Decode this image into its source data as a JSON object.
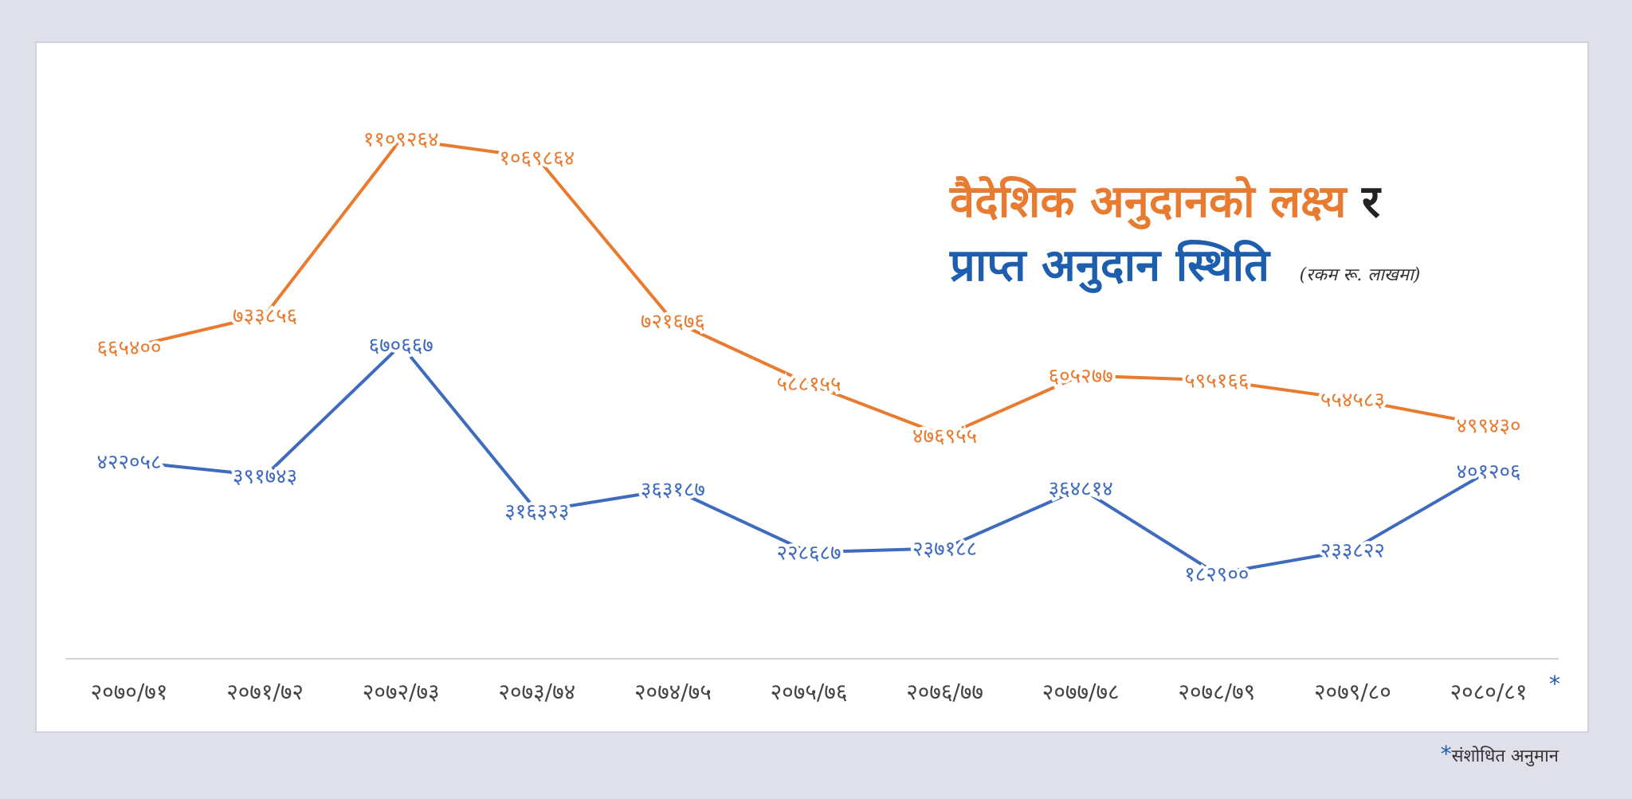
{
  "colors": {
    "target": "#e87b2f",
    "received": "#3f6bbf",
    "title_dark": "#222222",
    "title_blue": "#1d5fae",
    "axis": "#d5d5d5",
    "axis_text": "#444444",
    "asterisk": "#1d5fae"
  },
  "title": {
    "part1": "वैदेशिक अनुदानको लक्ष्य",
    "connector": "र",
    "part2": "प्राप्त अनुदान स्थिति",
    "unit_note": "(रकम रू. लाखमा)"
  },
  "footnote": {
    "star": "*",
    "text": "संशोधित अनुमान"
  },
  "chart_data": {
    "type": "line",
    "categories": [
      "२०७०/७१",
      "२०७१/७२",
      "२०७२/७३",
      "२०७३/७४",
      "२०७४/७५",
      "२०७५/७६",
      "२०७६/७७",
      "२०७७/७८",
      "२०७८/७९",
      "२०७९/८०",
      "२०८०/८१"
    ],
    "last_category_marker": "*",
    "ylim": [
      0,
      1200000
    ],
    "series": [
      {
        "name": "लक्ष्य",
        "color": "#e87b2f",
        "values": [
          665400,
          733856,
          1109264,
          1069864,
          721676,
          588155,
          476955,
          605277,
          595166,
          554583,
          499430
        ],
        "labels": [
          "६६५४००",
          "७३३८५६",
          "११०९२६४",
          "१०६९८६४",
          "७२१६७६",
          "५८८१५५",
          "४७६९५५",
          "६०५२७७",
          "५९५१६६",
          "५५४५८३",
          "४९९४३०"
        ]
      },
      {
        "name": "प्राप्त",
        "color": "#3f6bbf",
        "values": [
          422058,
          391743,
          670667,
          316323,
          363187,
          228687,
          237188,
          364814,
          182900,
          233822,
          401206
        ],
        "labels": [
          "४२२०५८",
          "३९१७४३",
          "६७०६६७",
          "३१६३२३",
          "३६३१८७",
          "२२८६८७",
          "२३७१८८",
          "३६४८१४",
          "१८२९००",
          "२३३८२२",
          "४०१२०६"
        ]
      }
    ]
  }
}
